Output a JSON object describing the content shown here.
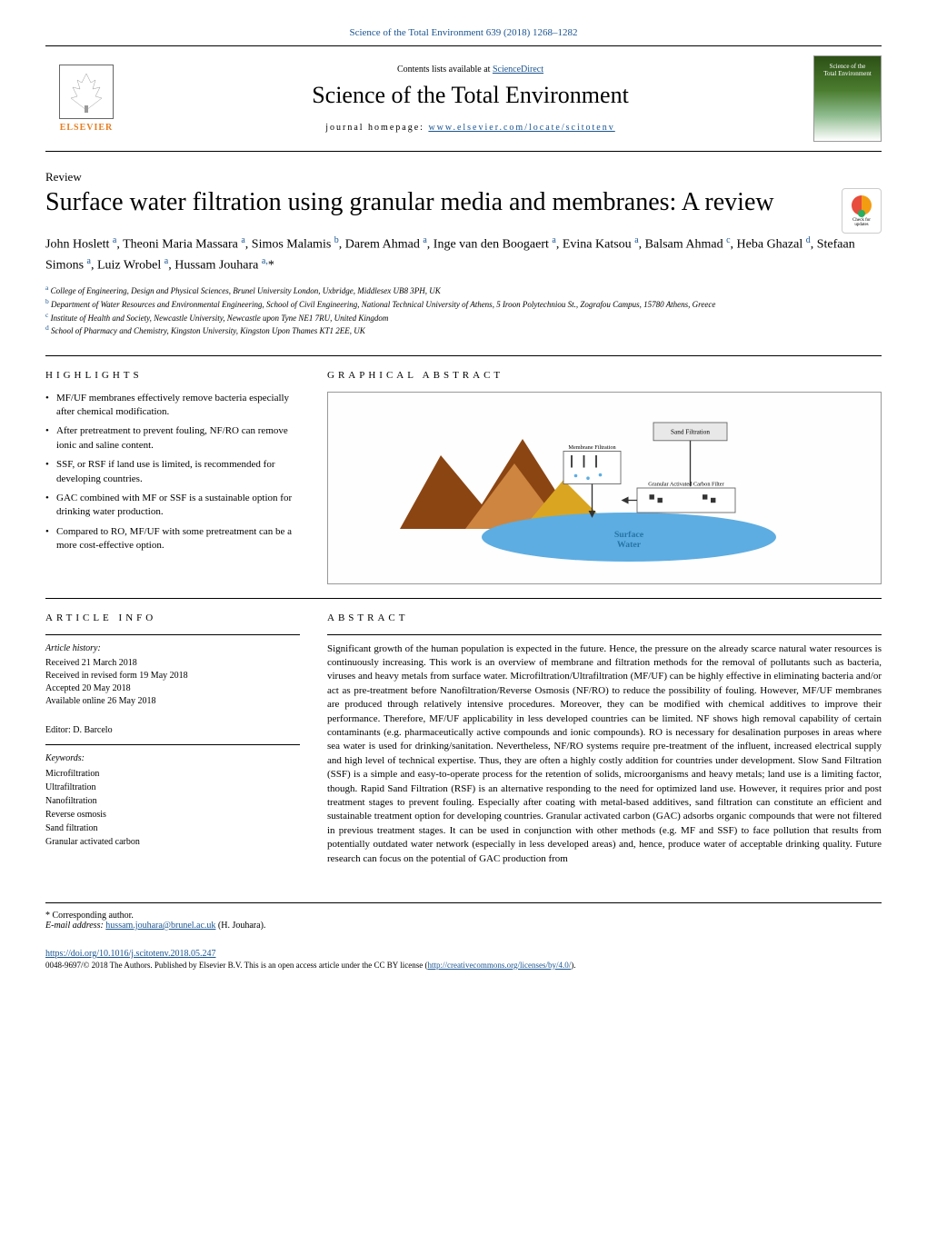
{
  "journal_citation": "Science of the Total Environment 639 (2018) 1268–1282",
  "header": {
    "contents_text": "Contents lists available at ",
    "contents_link": "ScienceDirect",
    "journal_title": "Science of the Total Environment",
    "homepage_label": "journal homepage: ",
    "homepage_url": "www.elsevier.com/locate/scitotenv",
    "elsevier_name": "ELSEVIER",
    "cover_title_1": "Science of the",
    "cover_title_2": "Total Environment"
  },
  "article_type": "Review",
  "title": "Surface water filtration using granular media and membranes: A review",
  "crossmark": {
    "line1": "Check for",
    "line2": "updates"
  },
  "authors_html": "John Hoslett <sup>a</sup>, Theoni Maria Massara <sup>a</sup>, Simos Malamis <sup>b</sup>, Darem Ahmad <sup>a</sup>, Inge van den Boogaert <sup>a</sup>, Evina Katsou <sup>a</sup>, Balsam Ahmad <sup>c</sup>, Heba Ghazal <sup>d</sup>, Stefaan Simons <sup>a</sup>, Luiz Wrobel <sup>a</sup>, Hussam Jouhara <sup>a,</sup>*",
  "affiliations": [
    {
      "sup": "a",
      "text": "College of Engineering, Design and Physical Sciences, Brunel University London, Uxbridge, Middlesex UB8 3PH, UK"
    },
    {
      "sup": "b",
      "text": "Department of Water Resources and Environmental Engineering, School of Civil Engineering, National Technical University of Athens, 5 Iroon Polytechniou St., Zografou Campus, 15780 Athens, Greece"
    },
    {
      "sup": "c",
      "text": "Institute of Health and Society, Newcastle University, Newcastle upon Tyne NE1 7RU, United Kingdom"
    },
    {
      "sup": "d",
      "text": "School of Pharmacy and Chemistry, Kingston University, Kingston Upon Thames KT1 2EE, UK"
    }
  ],
  "highlights": {
    "heading": "HIGHLIGHTS",
    "items": [
      "MF/UF membranes effectively remove bacteria especially after chemical modification.",
      "After pretreatment to prevent fouling, NF/RO can remove ionic and saline content.",
      "SSF, or RSF if land use is limited, is recommended for developing countries.",
      "GAC combined with MF or SSF is a sustainable option for drinking water production.",
      "Compared to RO, MF/UF with some pretreatment can be a more cost-effective option."
    ]
  },
  "graphical_abstract": {
    "heading": "GRAPHICAL ABSTRACT",
    "labels": {
      "sand_filtration": "Sand Filtration",
      "membrane_filtration": "Membrane Filtration",
      "gac_filter": "Granular Activated Carbon Filter",
      "surface_water": "Surface Water"
    },
    "colors": {
      "mountain_dark": "#8b4513",
      "mountain_mid": "#cd853f",
      "mountain_light": "#daa520",
      "water": "#5dade2",
      "water_label": "#2874a6",
      "box_fill": "#e8e8e8",
      "box_stroke": "#666666",
      "arrow": "#333333"
    }
  },
  "article_info": {
    "heading": "ARTICLE INFO",
    "history_label": "Article history:",
    "received": "Received 21 March 2018",
    "revised": "Received in revised form 19 May 2018",
    "accepted": "Accepted 20 May 2018",
    "online": "Available online 26 May 2018",
    "editor_label": "Editor: D. Barcelo",
    "keywords_label": "Keywords:",
    "keywords": [
      "Microfiltration",
      "Ultrafiltration",
      "Nanofiltration",
      "Reverse osmosis",
      "Sand filtration",
      "Granular activated carbon"
    ]
  },
  "abstract": {
    "heading": "ABSTRACT",
    "text": "Significant growth of the human population is expected in the future. Hence, the pressure on the already scarce natural water resources is continuously increasing. This work is an overview of membrane and filtration methods for the removal of pollutants such as bacteria, viruses and heavy metals from surface water. Microfiltration/Ultrafiltration (MF/UF) can be highly effective in eliminating bacteria and/or act as pre-treatment before Nanofiltration/Reverse Osmosis (NF/RO) to reduce the possibility of fouling. However, MF/UF membranes are produced through relatively intensive procedures. Moreover, they can be modified with chemical additives to improve their performance. Therefore, MF/UF applicability in less developed countries can be limited. NF shows high removal capability of certain contaminants (e.g. pharmaceutically active compounds and ionic compounds). RO is necessary for desalination purposes in areas where sea water is used for drinking/sanitation. Nevertheless, NF/RO systems require pre-treatment of the influent, increased electrical supply and high level of technical expertise. Thus, they are often a highly costly addition for countries under development. Slow Sand Filtration (SSF) is a simple and easy-to-operate process for the retention of solids, microorganisms and heavy metals; land use is a limiting factor, though. Rapid Sand Filtration (RSF) is an alternative responding to the need for optimized land use. However, it requires prior and post treatment stages to prevent fouling. Especially after coating with metal-based additives, sand filtration can constitute an efficient and sustainable treatment option for developing countries. Granular activated carbon (GAC) adsorbs organic compounds that were not filtered in previous treatment stages. It can be used in conjunction with other methods (e.g. MF and SSF) to face pollution that results from potentially outdated water network (especially in less developed areas) and, hence, produce water of acceptable drinking quality. Future research can focus on the potential of GAC production from"
  },
  "footer": {
    "corresponding": "* Corresponding author.",
    "email_label": "E-mail address: ",
    "email": "hussam.jouhara@brunel.ac.uk",
    "email_suffix": " (H. Jouhara).",
    "doi": "https://doi.org/10.1016/j.scitotenv.2018.05.247",
    "copyright": "0048-9697/© 2018 The Authors. Published by Elsevier B.V. This is an open access article under the CC BY license (",
    "cc_link": "http://creativecommons.org/licenses/by/4.0/",
    "copyright_end": ")."
  }
}
